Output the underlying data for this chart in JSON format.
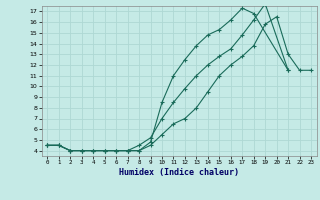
{
  "xlabel": "Humidex (Indice chaleur)",
  "bg_color": "#c5eae6",
  "grid_color": "#aed8d4",
  "line_color": "#1a6b5a",
  "xlim": [
    -0.5,
    23.5
  ],
  "ylim": [
    3.5,
    17.5
  ],
  "yticks": [
    4,
    5,
    6,
    7,
    8,
    9,
    10,
    11,
    12,
    13,
    14,
    15,
    16,
    17
  ],
  "xticks": [
    0,
    1,
    2,
    3,
    4,
    5,
    6,
    7,
    8,
    9,
    10,
    11,
    12,
    13,
    14,
    15,
    16,
    17,
    18,
    19,
    20,
    21,
    22,
    23
  ],
  "line1_x": [
    0,
    1,
    2,
    3,
    4,
    5,
    6,
    7,
    8,
    9,
    10,
    11,
    12,
    13,
    14,
    15,
    16,
    17,
    18,
    21
  ],
  "line1_y": [
    4.5,
    4.5,
    4.0,
    4.0,
    4.0,
    4.0,
    4.0,
    4.0,
    4.0,
    4.8,
    8.5,
    11.0,
    12.5,
    13.8,
    14.8,
    15.3,
    16.2,
    17.3,
    16.8,
    11.5
  ],
  "line2_x": [
    0,
    1,
    2,
    3,
    4,
    5,
    6,
    7,
    8,
    9,
    10,
    11,
    12,
    13,
    14,
    15,
    16,
    17,
    18,
    19,
    20,
    21,
    22,
    23
  ],
  "line2_y": [
    4.5,
    4.5,
    4.0,
    4.0,
    4.0,
    4.0,
    4.0,
    4.0,
    4.0,
    4.5,
    5.5,
    6.5,
    7.0,
    8.0,
    9.5,
    11.0,
    12.0,
    12.8,
    13.8,
    15.8,
    16.5,
    13.0,
    11.5,
    11.5
  ],
  "line3_x": [
    0,
    1,
    2,
    3,
    4,
    5,
    6,
    7,
    8,
    9,
    10,
    11,
    12,
    13,
    14,
    15,
    16,
    17,
    18,
    19,
    21
  ],
  "line3_y": [
    4.5,
    4.5,
    4.0,
    4.0,
    4.0,
    4.0,
    4.0,
    4.0,
    4.5,
    5.2,
    7.0,
    8.5,
    9.8,
    11.0,
    12.0,
    12.8,
    13.5,
    14.8,
    16.2,
    17.7,
    11.5
  ]
}
